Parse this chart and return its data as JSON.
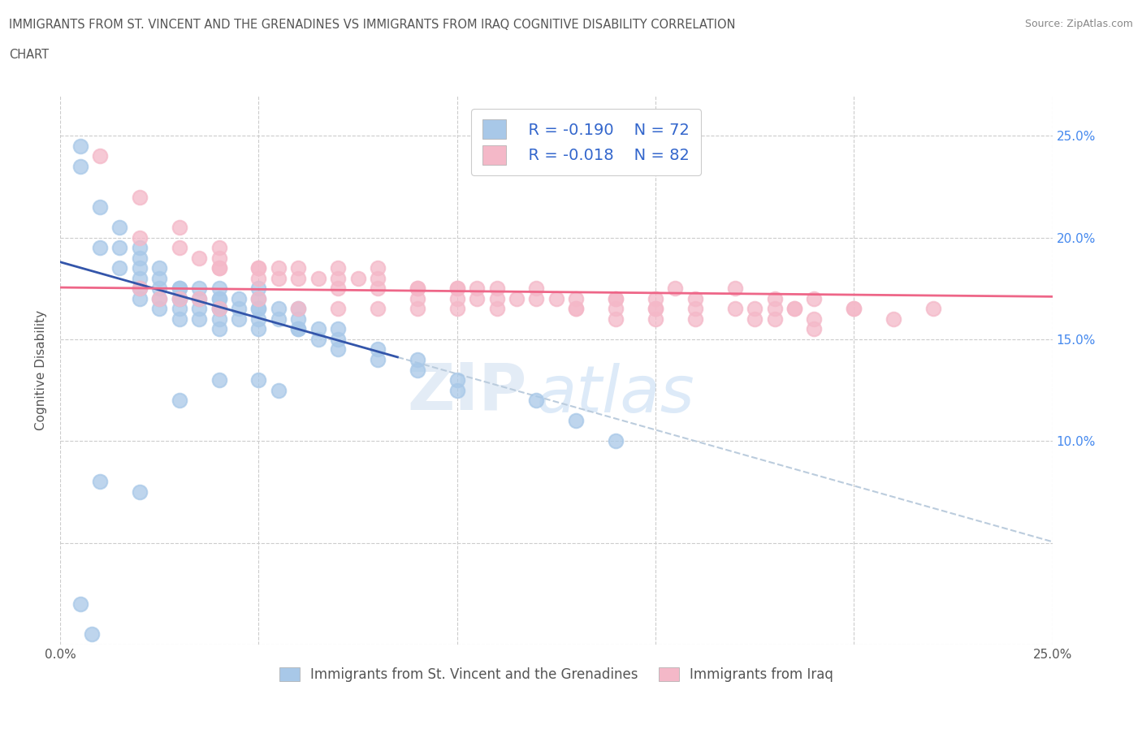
{
  "title_line1": "IMMIGRANTS FROM ST. VINCENT AND THE GRENADINES VS IMMIGRANTS FROM IRAQ COGNITIVE DISABILITY CORRELATION",
  "title_line2": "CHART",
  "source": "Source: ZipAtlas.com",
  "ylabel": "Cognitive Disability",
  "xlim": [
    0.0,
    0.25
  ],
  "ylim": [
    0.0,
    0.27
  ],
  "legend_r1": "R = -0.190",
  "legend_n1": "N = 72",
  "legend_r2": "R = -0.018",
  "legend_n2": "N = 82",
  "color_blue": "#a8c8e8",
  "color_pink": "#f4b8c8",
  "trend_blue": "#3355aa",
  "trend_pink": "#ee6688",
  "trend_gray": "#bbccdd",
  "legend_text_color": "#3366cc",
  "series1_label": "Immigrants from St. Vincent and the Grenadines",
  "series2_label": "Immigrants from Iraq",
  "blue_x": [
    0.005,
    0.005,
    0.01,
    0.01,
    0.015,
    0.015,
    0.015,
    0.02,
    0.02,
    0.02,
    0.02,
    0.02,
    0.02,
    0.025,
    0.025,
    0.025,
    0.025,
    0.025,
    0.03,
    0.03,
    0.03,
    0.03,
    0.03,
    0.03,
    0.035,
    0.035,
    0.035,
    0.035,
    0.04,
    0.04,
    0.04,
    0.04,
    0.04,
    0.04,
    0.04,
    0.045,
    0.045,
    0.045,
    0.05,
    0.05,
    0.05,
    0.05,
    0.05,
    0.05,
    0.055,
    0.055,
    0.06,
    0.06,
    0.06,
    0.06,
    0.065,
    0.065,
    0.07,
    0.07,
    0.07,
    0.08,
    0.08,
    0.09,
    0.09,
    0.1,
    0.1,
    0.12,
    0.13,
    0.14,
    0.01,
    0.02,
    0.03,
    0.04,
    0.05,
    0.055,
    0.005,
    0.008
  ],
  "blue_y": [
    0.245,
    0.235,
    0.215,
    0.195,
    0.205,
    0.195,
    0.185,
    0.195,
    0.19,
    0.185,
    0.18,
    0.175,
    0.17,
    0.185,
    0.18,
    0.175,
    0.17,
    0.165,
    0.175,
    0.17,
    0.175,
    0.17,
    0.165,
    0.16,
    0.175,
    0.17,
    0.165,
    0.16,
    0.175,
    0.17,
    0.165,
    0.16,
    0.155,
    0.17,
    0.165,
    0.17,
    0.165,
    0.16,
    0.175,
    0.17,
    0.165,
    0.16,
    0.155,
    0.165,
    0.165,
    0.16,
    0.165,
    0.155,
    0.16,
    0.155,
    0.15,
    0.155,
    0.155,
    0.15,
    0.145,
    0.145,
    0.14,
    0.14,
    0.135,
    0.13,
    0.125,
    0.12,
    0.11,
    0.1,
    0.08,
    0.075,
    0.12,
    0.13,
    0.13,
    0.125,
    0.02,
    0.005
  ],
  "pink_x": [
    0.01,
    0.02,
    0.02,
    0.03,
    0.03,
    0.035,
    0.04,
    0.04,
    0.04,
    0.04,
    0.05,
    0.05,
    0.05,
    0.055,
    0.055,
    0.06,
    0.06,
    0.065,
    0.07,
    0.07,
    0.07,
    0.075,
    0.08,
    0.08,
    0.08,
    0.09,
    0.09,
    0.09,
    0.1,
    0.1,
    0.1,
    0.105,
    0.105,
    0.11,
    0.11,
    0.115,
    0.12,
    0.12,
    0.125,
    0.13,
    0.13,
    0.14,
    0.14,
    0.14,
    0.15,
    0.15,
    0.15,
    0.155,
    0.16,
    0.16,
    0.17,
    0.17,
    0.175,
    0.18,
    0.18,
    0.185,
    0.19,
    0.2,
    0.21,
    0.22,
    0.02,
    0.025,
    0.03,
    0.035,
    0.04,
    0.05,
    0.06,
    0.07,
    0.08,
    0.09,
    0.1,
    0.11,
    0.13,
    0.14,
    0.15,
    0.16,
    0.175,
    0.18,
    0.185,
    0.19,
    0.19,
    0.2
  ],
  "pink_y": [
    0.24,
    0.22,
    0.2,
    0.205,
    0.195,
    0.19,
    0.195,
    0.185,
    0.185,
    0.19,
    0.185,
    0.18,
    0.185,
    0.185,
    0.18,
    0.18,
    0.185,
    0.18,
    0.185,
    0.18,
    0.175,
    0.18,
    0.185,
    0.18,
    0.175,
    0.175,
    0.17,
    0.175,
    0.175,
    0.175,
    0.17,
    0.175,
    0.17,
    0.175,
    0.17,
    0.17,
    0.175,
    0.17,
    0.17,
    0.17,
    0.165,
    0.17,
    0.165,
    0.17,
    0.165,
    0.17,
    0.165,
    0.175,
    0.165,
    0.17,
    0.175,
    0.165,
    0.165,
    0.17,
    0.165,
    0.165,
    0.17,
    0.165,
    0.16,
    0.165,
    0.175,
    0.17,
    0.17,
    0.17,
    0.165,
    0.17,
    0.165,
    0.165,
    0.165,
    0.165,
    0.165,
    0.165,
    0.165,
    0.16,
    0.16,
    0.16,
    0.16,
    0.16,
    0.165,
    0.16,
    0.155,
    0.165
  ],
  "watermark_zip": "ZIP",
  "watermark_atlas": "atlas",
  "background_color": "#ffffff",
  "figsize": [
    14.06,
    9.3
  ],
  "dpi": 100
}
